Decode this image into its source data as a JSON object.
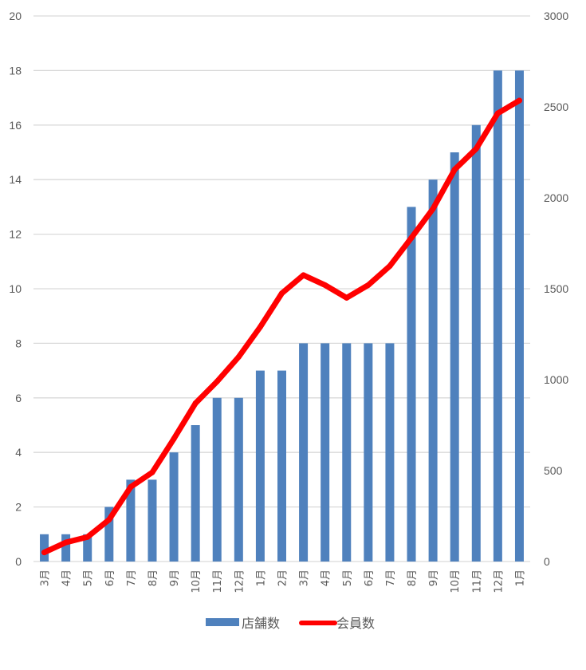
{
  "chart_data": {
    "type": "bar",
    "title": "",
    "xlabel": "",
    "ylabel": "",
    "y2label": "",
    "categories": [
      "3月",
      "4月",
      "5月",
      "6月",
      "7月",
      "8月",
      "9月",
      "10月",
      "11月",
      "12月",
      "1月",
      "2月",
      "3月",
      "4月",
      "5月",
      "6月",
      "7月",
      "8月",
      "9月",
      "10月",
      "11月",
      "12月",
      "1月"
    ],
    "series": [
      {
        "name": "店舗数",
        "type": "bar",
        "axis": "left",
        "color": "#4F81BD",
        "values": [
          1,
          1,
          1,
          2,
          3,
          3,
          4,
          5,
          6,
          6,
          7,
          7,
          8,
          8,
          8,
          8,
          8,
          13,
          14,
          15,
          16,
          18,
          18
        ]
      },
      {
        "name": "会員数",
        "type": "line",
        "axis": "right",
        "color": "#FF0000",
        "values": [
          50,
          105,
          135,
          230,
          410,
          490,
          675,
          870,
          990,
          1125,
          1290,
          1475,
          1575,
          1520,
          1450,
          1520,
          1625,
          1780,
          1940,
          2155,
          2270,
          2465,
          2535
        ]
      }
    ],
    "ylim": [
      0,
      20
    ],
    "y_ticks": [
      "0",
      "2",
      "4",
      "6",
      "8",
      "10",
      "12",
      "14",
      "16",
      "18",
      "20"
    ],
    "y2lim": [
      0,
      3000
    ],
    "y2_ticks": [
      "0",
      "500",
      "1000",
      "1500",
      "2000",
      "2500",
      "3000"
    ],
    "grid": true,
    "legend": {
      "position": "bottom",
      "entries": [
        "店舗数",
        "会員数"
      ]
    }
  }
}
